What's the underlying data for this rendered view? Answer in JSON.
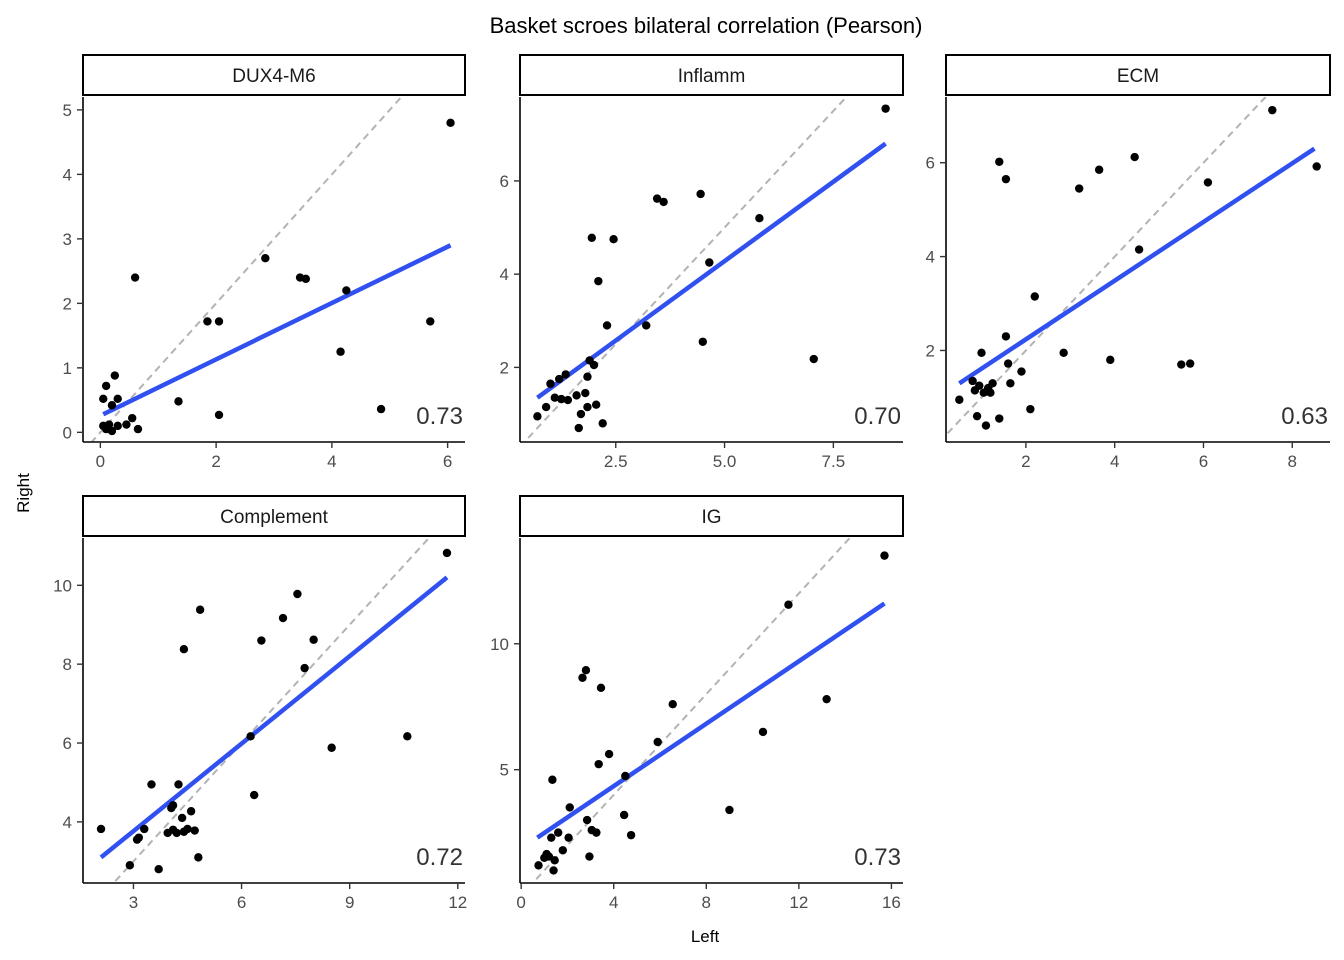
{
  "title": "Basket scroes bilateral correlation (Pearson)",
  "xlabel": "Left",
  "ylabel": "Right",
  "colors": {
    "fit": "#3050f0",
    "identity": "#b3b3b3",
    "point": "#000000"
  },
  "chart_data": [
    {
      "type": "scatter",
      "panel": "DUX4-M6",
      "correlation": "0.73",
      "xlim": [
        -0.3,
        6.3
      ],
      "ylim": [
        -0.15,
        5.2
      ],
      "xticks": [
        0,
        2,
        4,
        6
      ],
      "yticks": [
        0,
        1,
        2,
        3,
        4,
        5
      ],
      "fit": {
        "x": [
          0.05,
          6.05
        ],
        "y": [
          0.28,
          2.9
        ]
      },
      "points": [
        [
          0.05,
          0.52
        ],
        [
          0.1,
          0.72
        ],
        [
          0.15,
          0.12
        ],
        [
          0.1,
          0.05
        ],
        [
          0.2,
          0.02
        ],
        [
          0.25,
          0.88
        ],
        [
          0.3,
          0.52
        ],
        [
          0.2,
          0.42
        ],
        [
          0.3,
          0.1
        ],
        [
          0.45,
          0.12
        ],
        [
          0.55,
          0.22
        ],
        [
          0.6,
          2.4
        ],
        [
          0.65,
          0.05
        ],
        [
          0.05,
          0.1
        ],
        [
          0.12,
          0.08
        ],
        [
          1.35,
          0.48
        ],
        [
          1.85,
          1.72
        ],
        [
          2.05,
          1.72
        ],
        [
          2.05,
          0.27
        ],
        [
          2.85,
          2.7
        ],
        [
          3.45,
          2.4
        ],
        [
          3.55,
          2.38
        ],
        [
          4.15,
          1.25
        ],
        [
          4.25,
          2.2
        ],
        [
          4.85,
          0.36
        ],
        [
          5.7,
          1.72
        ],
        [
          6.05,
          4.8
        ]
      ]
    },
    {
      "type": "scatter",
      "panel": "Inflamm",
      "correlation": "0.70",
      "xlim": [
        0.3,
        9.1
      ],
      "ylim": [
        0.4,
        7.8
      ],
      "xticks": [
        2.5,
        5.0,
        7.5
      ],
      "yticks": [
        2,
        4,
        6
      ],
      "fit": {
        "x": [
          0.7,
          8.7
        ],
        "y": [
          1.35,
          6.8
        ]
      },
      "points": [
        [
          0.7,
          0.95
        ],
        [
          0.9,
          1.15
        ],
        [
          1.0,
          1.65
        ],
        [
          1.1,
          1.35
        ],
        [
          1.2,
          1.75
        ],
        [
          1.25,
          1.32
        ],
        [
          1.35,
          1.85
        ],
        [
          1.4,
          1.3
        ],
        [
          1.6,
          1.4
        ],
        [
          1.65,
          0.7
        ],
        [
          1.7,
          1.0
        ],
        [
          1.8,
          1.45
        ],
        [
          1.85,
          1.8
        ],
        [
          1.85,
          1.15
        ],
        [
          1.9,
          2.15
        ],
        [
          1.95,
          4.78
        ],
        [
          2.0,
          2.05
        ],
        [
          2.05,
          1.2
        ],
        [
          2.1,
          3.85
        ],
        [
          2.2,
          0.8
        ],
        [
          2.3,
          2.9
        ],
        [
          2.45,
          4.75
        ],
        [
          3.2,
          2.9
        ],
        [
          3.45,
          5.62
        ],
        [
          3.6,
          5.55
        ],
        [
          4.45,
          5.72
        ],
        [
          4.5,
          2.55
        ],
        [
          4.65,
          4.25
        ],
        [
          5.8,
          5.2
        ],
        [
          7.05,
          2.18
        ],
        [
          8.7,
          7.55
        ]
      ]
    },
    {
      "type": "scatter",
      "panel": "ECM",
      "correlation": "0.63",
      "xlim": [
        0.2,
        8.85
      ],
      "ylim": [
        0.05,
        7.4
      ],
      "xticks": [
        2,
        4,
        6,
        8
      ],
      "yticks": [
        2,
        4,
        6
      ],
      "fit": {
        "x": [
          0.5,
          8.5
        ],
        "y": [
          1.3,
          6.3
        ]
      },
      "points": [
        [
          0.5,
          0.95
        ],
        [
          0.8,
          1.35
        ],
        [
          0.85,
          1.15
        ],
        [
          0.9,
          0.6
        ],
        [
          0.95,
          1.25
        ],
        [
          1.0,
          1.95
        ],
        [
          1.05,
          1.1
        ],
        [
          1.1,
          0.4
        ],
        [
          1.15,
          1.2
        ],
        [
          1.2,
          1.1
        ],
        [
          1.25,
          1.3
        ],
        [
          1.4,
          0.55
        ],
        [
          1.4,
          6.02
        ],
        [
          1.55,
          5.65
        ],
        [
          1.55,
          2.3
        ],
        [
          1.6,
          1.72
        ],
        [
          1.65,
          1.3
        ],
        [
          1.9,
          1.55
        ],
        [
          2.1,
          0.75
        ],
        [
          2.2,
          3.15
        ],
        [
          2.85,
          1.95
        ],
        [
          3.2,
          5.45
        ],
        [
          3.65,
          5.85
        ],
        [
          3.9,
          1.8
        ],
        [
          4.45,
          6.12
        ],
        [
          4.55,
          4.15
        ],
        [
          5.5,
          1.7
        ],
        [
          5.7,
          1.72
        ],
        [
          6.1,
          5.58
        ],
        [
          7.55,
          7.12
        ],
        [
          8.55,
          5.92
        ]
      ]
    },
    {
      "type": "scatter",
      "panel": "Complement",
      "correlation": "0.72",
      "xlim": [
        1.6,
        12.2
      ],
      "ylim": [
        2.45,
        11.2
      ],
      "xticks": [
        3,
        6,
        9,
        12
      ],
      "yticks": [
        4,
        6,
        8,
        10
      ],
      "fit": {
        "x": [
          2.1,
          11.7
        ],
        "y": [
          3.1,
          10.2
        ]
      },
      "points": [
        [
          2.1,
          3.82
        ],
        [
          2.9,
          2.9
        ],
        [
          3.1,
          3.55
        ],
        [
          3.15,
          3.6
        ],
        [
          3.3,
          3.82
        ],
        [
          3.5,
          4.95
        ],
        [
          3.7,
          2.8
        ],
        [
          3.95,
          3.72
        ],
        [
          4.05,
          4.35
        ],
        [
          4.1,
          4.42
        ],
        [
          4.1,
          3.8
        ],
        [
          4.2,
          3.72
        ],
        [
          4.25,
          4.95
        ],
        [
          4.35,
          4.1
        ],
        [
          4.4,
          3.75
        ],
        [
          4.4,
          8.38
        ],
        [
          4.5,
          3.82
        ],
        [
          4.6,
          4.27
        ],
        [
          4.7,
          3.78
        ],
        [
          4.8,
          3.1
        ],
        [
          4.85,
          9.38
        ],
        [
          6.25,
          6.17
        ],
        [
          6.35,
          4.68
        ],
        [
          6.55,
          8.6
        ],
        [
          7.15,
          9.17
        ],
        [
          7.55,
          9.78
        ],
        [
          7.75,
          7.9
        ],
        [
          8.0,
          8.62
        ],
        [
          8.5,
          5.88
        ],
        [
          10.6,
          6.17
        ],
        [
          11.7,
          10.82
        ]
      ]
    },
    {
      "type": "scatter",
      "panel": "IG",
      "correlation": "0.73",
      "xlim": [
        -0.05,
        16.5
      ],
      "ylim": [
        0.5,
        14.2
      ],
      "xticks": [
        0,
        4,
        8,
        12,
        16
      ],
      "yticks": [
        5,
        10
      ],
      "fit": {
        "x": [
          0.7,
          15.7
        ],
        "y": [
          2.3,
          11.6
        ]
      },
      "points": [
        [
          0.75,
          1.2
        ],
        [
          1.0,
          1.5
        ],
        [
          1.1,
          1.65
        ],
        [
          1.2,
          1.55
        ],
        [
          1.3,
          2.3
        ],
        [
          1.35,
          4.6
        ],
        [
          1.4,
          1.0
        ],
        [
          1.45,
          1.4
        ],
        [
          1.6,
          2.5
        ],
        [
          1.8,
          1.8
        ],
        [
          2.05,
          2.3
        ],
        [
          2.1,
          3.5
        ],
        [
          2.65,
          8.65
        ],
        [
          2.8,
          8.95
        ],
        [
          2.85,
          3.0
        ],
        [
          2.95,
          1.55
        ],
        [
          3.05,
          2.6
        ],
        [
          3.25,
          2.5
        ],
        [
          3.35,
          5.22
        ],
        [
          3.45,
          8.25
        ],
        [
          3.8,
          5.62
        ],
        [
          4.45,
          3.2
        ],
        [
          4.5,
          4.75
        ],
        [
          4.75,
          2.4
        ],
        [
          5.9,
          6.1
        ],
        [
          6.55,
          7.6
        ],
        [
          9.0,
          3.4
        ],
        [
          10.45,
          6.5
        ],
        [
          11.55,
          11.55
        ],
        [
          13.2,
          7.8
        ],
        [
          15.7,
          13.5
        ]
      ]
    }
  ]
}
